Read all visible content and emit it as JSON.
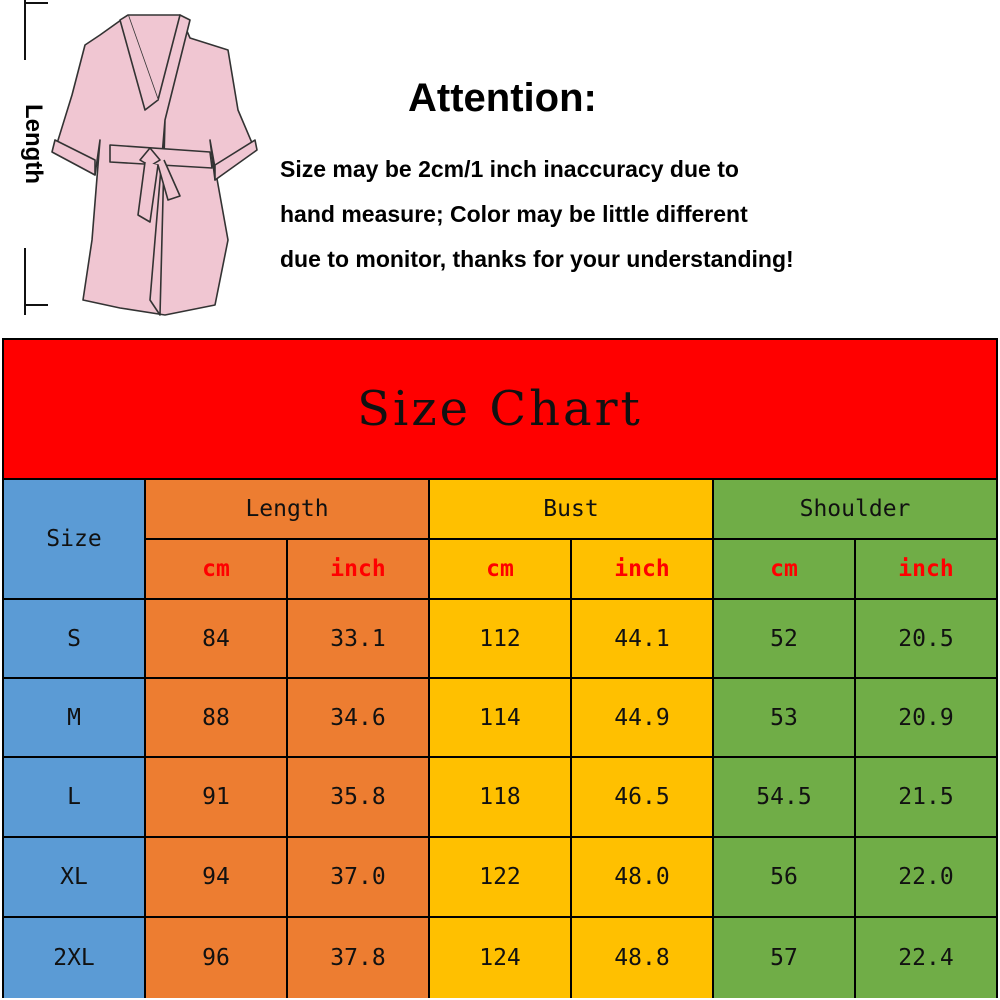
{
  "illustration": {
    "length_label": "Length"
  },
  "attention": {
    "title": "Attention:",
    "lines": [
      "Size may be 2cm/1 inch inaccuracy due to",
      "hand measure; Color may be little different",
      "due to monitor, thanks for your understanding!"
    ]
  },
  "size_chart": {
    "title": "Size Chart",
    "size_header": "Size",
    "groups": [
      "Length",
      "Bust",
      "Shoulder"
    ],
    "units": [
      "cm",
      "inch"
    ],
    "colors": {
      "title": "#ff0000",
      "size": "#5b9bd5",
      "length": "#ed7d31",
      "bust": "#ffc000",
      "shoulder": "#70ad47",
      "unit_text": "#ff0000"
    },
    "rows": [
      [
        "S",
        "84",
        "33.1",
        "112",
        "44.1",
        "52",
        "20.5"
      ],
      [
        "M",
        "88",
        "34.6",
        "114",
        "44.9",
        "53",
        "20.9"
      ],
      [
        "L",
        "91",
        "35.8",
        "118",
        "46.5",
        "54.5",
        "21.5"
      ],
      [
        "XL",
        "94",
        "37.0",
        "122",
        "48.0",
        "56",
        "22.0"
      ],
      [
        "2XL",
        "96",
        "37.8",
        "124",
        "48.8",
        "57",
        "22.4"
      ]
    ]
  }
}
